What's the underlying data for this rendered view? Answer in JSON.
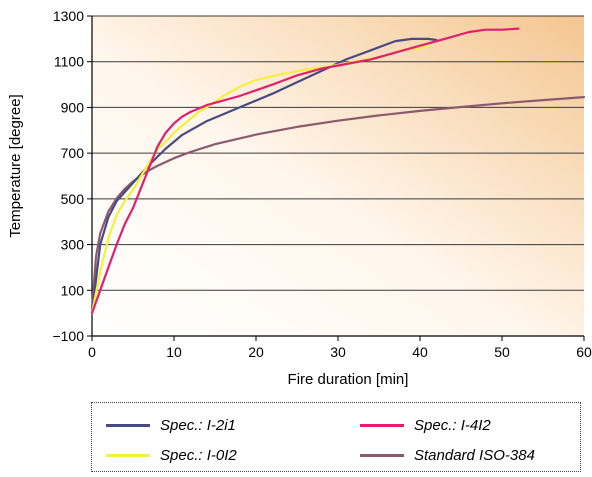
{
  "chart_data": {
    "type": "line",
    "title": "",
    "xlabel": "Fire duration [min]",
    "ylabel": "Temperature [degree]",
    "xlim": [
      0,
      60
    ],
    "ylim": [
      -100,
      1300
    ],
    "x_ticks": [
      "0",
      "10",
      "20",
      "30",
      "40",
      "50",
      "60"
    ],
    "y_ticks": [
      "−100",
      "100",
      "300",
      "500",
      "700",
      "900",
      "1100",
      "1300"
    ],
    "x_tick_values": [
      0,
      10,
      20,
      30,
      40,
      50,
      60
    ],
    "y_tick_values": [
      -100,
      100,
      300,
      500,
      700,
      900,
      1100,
      1300
    ],
    "grid": "horizontal",
    "background": "orange-gradient",
    "legend_position": "bottom",
    "series": [
      {
        "name": "Spec.: I-2i1",
        "color": "#4a4a82",
        "points": [
          [
            0,
            0
          ],
          [
            0.5,
            150
          ],
          [
            1,
            300
          ],
          [
            2,
            420
          ],
          [
            3,
            490
          ],
          [
            5,
            570
          ],
          [
            7,
            650
          ],
          [
            9,
            720
          ],
          [
            11,
            780
          ],
          [
            14,
            840
          ],
          [
            18,
            900
          ],
          [
            22,
            960
          ],
          [
            25,
            1010
          ],
          [
            28,
            1060
          ],
          [
            31,
            1110
          ],
          [
            34,
            1150
          ],
          [
            37,
            1190
          ],
          [
            39,
            1200
          ],
          [
            41,
            1200
          ],
          [
            42,
            1195
          ]
        ]
      },
      {
        "name": "Spec.: I-4I2",
        "color": "#e0206e",
        "points": [
          [
            0,
            0
          ],
          [
            1,
            100
          ],
          [
            2,
            200
          ],
          [
            3,
            300
          ],
          [
            4,
            390
          ],
          [
            5,
            460
          ],
          [
            6,
            550
          ],
          [
            7,
            640
          ],
          [
            8,
            730
          ],
          [
            9,
            790
          ],
          [
            10,
            830
          ],
          [
            11,
            860
          ],
          [
            12,
            880
          ],
          [
            14,
            910
          ],
          [
            16,
            930
          ],
          [
            18,
            950
          ],
          [
            20,
            975
          ],
          [
            22,
            1000
          ],
          [
            25,
            1040
          ],
          [
            28,
            1070
          ],
          [
            31,
            1090
          ],
          [
            34,
            1110
          ],
          [
            37,
            1140
          ],
          [
            40,
            1170
          ],
          [
            43,
            1200
          ],
          [
            46,
            1230
          ],
          [
            48,
            1240
          ],
          [
            50,
            1240
          ],
          [
            52,
            1245
          ]
        ]
      },
      {
        "name": "Spec.: I-0I2",
        "color": "#f4f03c",
        "points": [
          [
            0,
            0
          ],
          [
            1,
            180
          ],
          [
            2,
            330
          ],
          [
            3,
            430
          ],
          [
            4,
            490
          ],
          [
            5,
            540
          ],
          [
            6,
            600
          ],
          [
            7,
            660
          ],
          [
            8,
            720
          ],
          [
            9,
            750
          ],
          [
            10,
            790
          ],
          [
            11,
            820
          ],
          [
            12,
            850
          ],
          [
            13,
            880
          ],
          [
            14,
            900
          ],
          [
            16,
            950
          ],
          [
            18,
            990
          ],
          [
            20,
            1020
          ],
          [
            23,
            1045
          ],
          [
            26,
            1065
          ],
          [
            29,
            1080
          ],
          [
            32,
            1100
          ],
          [
            35,
            1120
          ],
          [
            38,
            1150
          ],
          [
            40,
            1160
          ],
          [
            41,
            1170
          ]
        ]
      },
      {
        "name": "Standard ISO-384",
        "color": "#8c5a6e",
        "points": [
          [
            0,
            20
          ],
          [
            0.5,
            250
          ],
          [
            1,
            349
          ],
          [
            2,
            445
          ],
          [
            3,
            502
          ],
          [
            4,
            544
          ],
          [
            5,
            576
          ],
          [
            6,
            603
          ],
          [
            7,
            626
          ],
          [
            8,
            645
          ],
          [
            10,
            678
          ],
          [
            12,
            705
          ],
          [
            15,
            739
          ],
          [
            20,
            781
          ],
          [
            25,
            815
          ],
          [
            30,
            842
          ],
          [
            35,
            865
          ],
          [
            40,
            885
          ],
          [
            45,
            902
          ],
          [
            50,
            918
          ],
          [
            55,
            932
          ],
          [
            60,
            945
          ]
        ]
      }
    ]
  }
}
